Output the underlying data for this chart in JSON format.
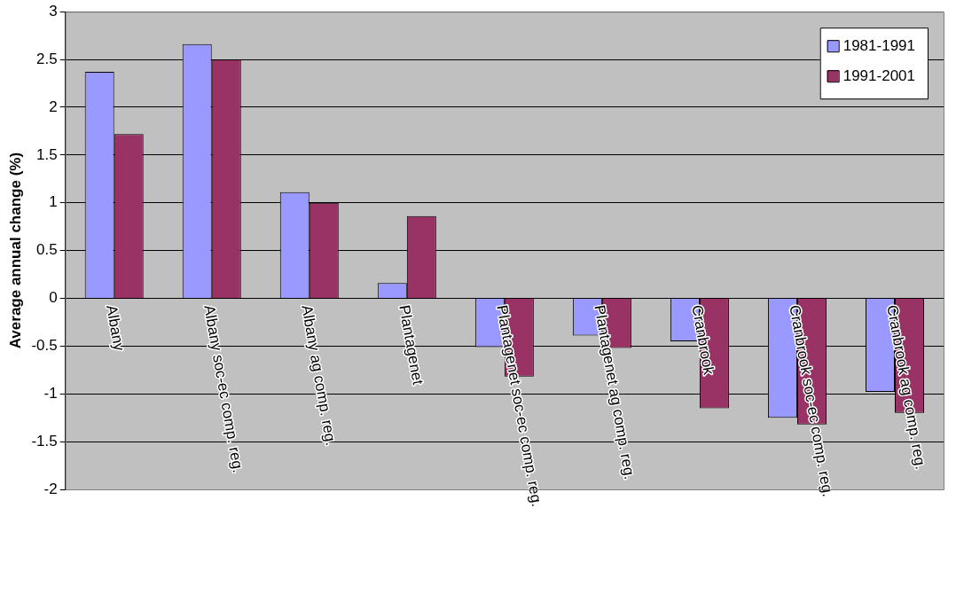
{
  "chart_data": {
    "type": "bar",
    "ylabel": "Average annual change (%)",
    "categories": [
      "Albany",
      "Albany soc-ec comp. reg.",
      "Albany ag comp. reg.",
      "Plantagenet",
      "Plantagenet soc-ec comp. reg.",
      "Plantagenet ag comp. reg.",
      "Cranbrook",
      "Cranbrook soc-ec comp. reg.",
      "Cranbrook ag comp. reg."
    ],
    "series": [
      {
        "name": "1981-1991",
        "color": "#9999ff",
        "values": [
          2.37,
          2.66,
          1.11,
          0.16,
          -0.51,
          -0.39,
          -0.45,
          -1.25,
          -0.98
        ]
      },
      {
        "name": "1991-2001",
        "color": "#993366",
        "values": [
          1.72,
          2.5,
          1.0,
          0.86,
          -0.82,
          -0.52,
          -1.15,
          -1.32,
          -1.2
        ]
      }
    ],
    "ylim": [
      -2,
      3
    ],
    "yticks": [
      -2,
      -1.5,
      -1,
      -0.5,
      0,
      0.5,
      1,
      1.5,
      2,
      2.5,
      3
    ],
    "grid": "y",
    "legend": "top right"
  }
}
